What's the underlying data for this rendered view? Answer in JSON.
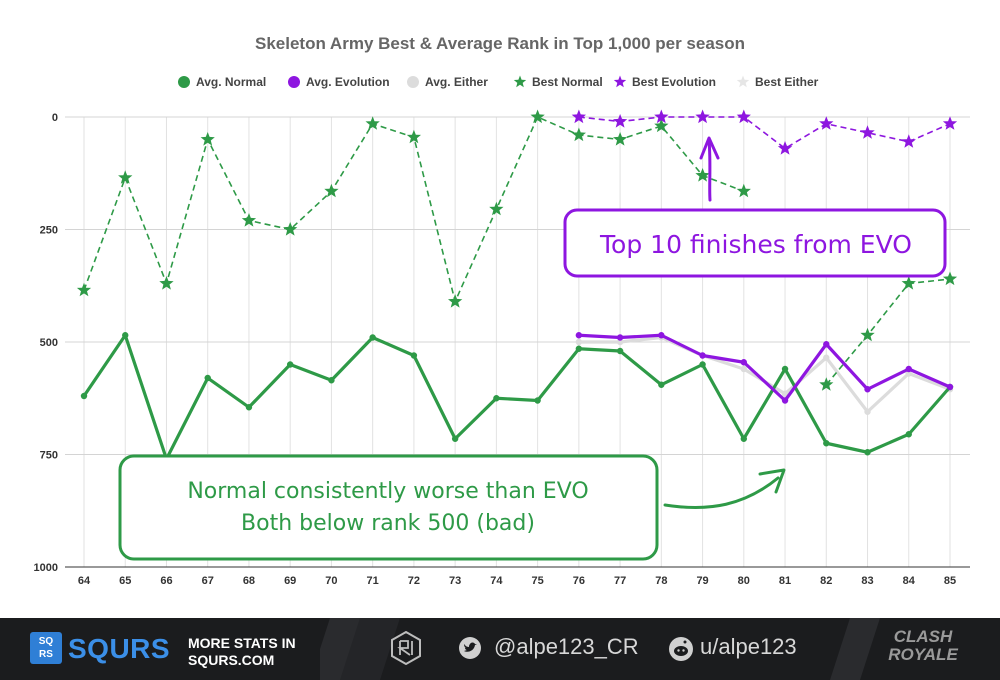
{
  "chart_data": {
    "type": "line",
    "title": "Skeleton Army Best & Average Rank in Top 1,000 per season",
    "x": [
      64,
      65,
      66,
      67,
      68,
      69,
      70,
      71,
      72,
      73,
      74,
      75,
      76,
      77,
      78,
      79,
      80,
      81,
      82,
      83,
      84,
      85
    ],
    "y_ticks": [
      0,
      250,
      500,
      750,
      1000
    ],
    "ylim": [
      0,
      1000
    ],
    "y_inverted": true,
    "grid": true,
    "legend_position": "top",
    "series": [
      {
        "name": "Avg. Normal",
        "style": "solid",
        "marker": "circle",
        "color": "#2e9a47",
        "values": [
          620,
          485,
          760,
          580,
          645,
          550,
          585,
          490,
          530,
          715,
          625,
          630,
          515,
          520,
          595,
          550,
          715,
          560,
          725,
          745,
          705,
          600
        ]
      },
      {
        "name": "Avg. Evolution",
        "style": "solid",
        "marker": "circle",
        "color": "#8e16e0",
        "values": [
          null,
          null,
          null,
          null,
          null,
          null,
          null,
          null,
          null,
          null,
          null,
          null,
          485,
          490,
          485,
          530,
          545,
          630,
          505,
          605,
          560,
          600
        ]
      },
      {
        "name": "Avg. Either",
        "style": "solid",
        "marker": "circle",
        "color": "#dcdcdc",
        "values": [
          null,
          null,
          null,
          null,
          null,
          null,
          null,
          null,
          null,
          null,
          null,
          null,
          500,
          500,
          490,
          530,
          560,
          615,
          535,
          655,
          570,
          605
        ]
      },
      {
        "name": "Best Normal",
        "style": "dashed",
        "marker": "star",
        "color": "#2e9a47",
        "values": [
          385,
          135,
          370,
          50,
          230,
          250,
          165,
          15,
          45,
          410,
          205,
          0,
          40,
          50,
          20,
          130,
          165,
          null,
          595,
          485,
          370,
          360
        ]
      },
      {
        "name": "Best Evolution",
        "style": "dashed",
        "marker": "star",
        "color": "#8e16e0",
        "values": [
          null,
          null,
          null,
          null,
          null,
          null,
          null,
          null,
          null,
          null,
          null,
          null,
          0,
          10,
          0,
          0,
          0,
          70,
          15,
          35,
          55,
          15
        ]
      },
      {
        "name": "Best Either",
        "style": "dashed",
        "marker": "star",
        "color": "#e6e6e6",
        "values": [
          null,
          null,
          null,
          null,
          null,
          null,
          null,
          null,
          null,
          null,
          null,
          null,
          0,
          10,
          0,
          0,
          0,
          70,
          15,
          35,
          55,
          15
        ]
      }
    ],
    "annotations": [
      {
        "text": "Top 10 finishes from EVO",
        "color": "#8e16e0"
      },
      {
        "text_lines": [
          "Normal consistently worse than EVO",
          "Both below rank 500 (bad)"
        ],
        "color": "#2e9a47"
      }
    ]
  },
  "footer": {
    "brand": "SQURS",
    "brand_badge": [
      "SQ",
      "RS"
    ],
    "more_line1": "MORE STATS IN",
    "more_line2": "SQURS.COM",
    "twitter": "@alpe123_CR",
    "reddit": "u/alpe123",
    "game_logo_line1": "CLASH",
    "game_logo_line2": "ROYALE"
  }
}
